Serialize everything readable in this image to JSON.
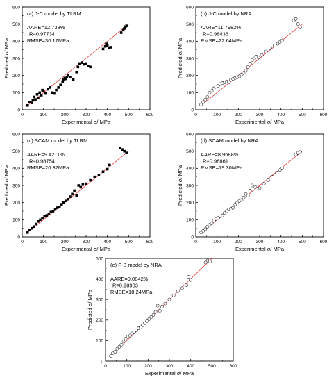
{
  "chart_data": [
    {
      "type": "scatter",
      "title": "(a) J-C model by TLRM",
      "stats": [
        "AARE=12.738%",
        "R=0.97734",
        "RMSE=30.17MPa"
      ],
      "xlabel": "Experimental σ/ MPa",
      "ylabel": "Predicted σ/ MPa",
      "xlim": [
        0,
        600
      ],
      "ylim": [
        0,
        600
      ],
      "xticks": [
        "0",
        "100",
        "200",
        "300",
        "400",
        "500",
        "600"
      ],
      "yticks": [
        "0",
        "100",
        "200",
        "300",
        "400",
        "500",
        "600"
      ],
      "marker": "filled-square",
      "series": [
        {
          "x": [
            25,
            35,
            45,
            50,
            55,
            62,
            70,
            75,
            82,
            90,
            95,
            100,
            110,
            120,
            130,
            140,
            150,
            160,
            170,
            180,
            190,
            195,
            200,
            205,
            210,
            215,
            225,
            240,
            255,
            262,
            270,
            280,
            290,
            300,
            310,
            320,
            380,
            390,
            395,
            400,
            408,
            415,
            465,
            475,
            480,
            485,
            490
          ],
          "y": [
            25,
            45,
            40,
            55,
            75,
            60,
            90,
            70,
            100,
            85,
            115,
            110,
            95,
            120,
            130,
            100,
            95,
            115,
            130,
            145,
            165,
            175,
            185,
            180,
            190,
            200,
            190,
            175,
            220,
            250,
            270,
            275,
            265,
            270,
            255,
            250,
            355,
            370,
            385,
            375,
            360,
            365,
            450,
            465,
            475,
            485,
            490
          ]
        }
      ]
    },
    {
      "type": "scatter",
      "title": "(b) J-C model by NRA",
      "stats": [
        "AARE=11.7982%",
        "R=0.98436",
        "RMSE=22.64MPa"
      ],
      "xlabel": "Experimental σ/ MPa",
      "ylabel": "Predicted σ/ MPa",
      "xlim": [
        0,
        600
      ],
      "ylim": [
        0,
        600
      ],
      "xticks": [
        "0",
        "100",
        "200",
        "300",
        "400",
        "500",
        "600"
      ],
      "yticks": [
        "0",
        "100",
        "200",
        "300",
        "400",
        "500",
        "600"
      ],
      "marker": "open-circle",
      "series": [
        {
          "x": [
            25,
            35,
            45,
            55,
            65,
            75,
            85,
            95,
            105,
            115,
            125,
            135,
            145,
            155,
            165,
            175,
            185,
            195,
            205,
            215,
            225,
            235,
            245,
            255,
            265,
            275,
            285,
            295,
            310,
            330,
            350,
            370,
            385,
            395,
            405,
            460,
            470,
            480,
            490
          ],
          "y": [
            30,
            45,
            60,
            75,
            100,
            110,
            125,
            135,
            140,
            150,
            155,
            160,
            165,
            160,
            175,
            180,
            185,
            190,
            195,
            205,
            215,
            230,
            250,
            270,
            290,
            300,
            310,
            305,
            320,
            340,
            360,
            375,
            385,
            395,
            405,
            520,
            530,
            500,
            480
          ]
        }
      ]
    },
    {
      "type": "scatter",
      "title": "(c) SCAM model by TLRM",
      "stats": [
        "AARE=9.4211%",
        "R=0.98754",
        "RMSE=20.32MPa"
      ],
      "xlabel": "Experimental σ/ MPa",
      "ylabel": "Predicted σ/ MPa",
      "xlim": [
        0,
        600
      ],
      "ylim": [
        0,
        600
      ],
      "xticks": [
        "0",
        "100",
        "200",
        "300",
        "400",
        "500",
        "600"
      ],
      "yticks": [
        "0",
        "100",
        "200",
        "300",
        "400",
        "500",
        "600"
      ],
      "marker": "filled-square",
      "series": [
        {
          "x": [
            25,
            35,
            45,
            55,
            65,
            75,
            85,
            95,
            105,
            115,
            125,
            135,
            145,
            155,
            165,
            175,
            185,
            195,
            205,
            215,
            225,
            235,
            245,
            255,
            265,
            275,
            285,
            300,
            320,
            340,
            360,
            380,
            400,
            410,
            460,
            470,
            480,
            490
          ],
          "y": [
            25,
            40,
            50,
            60,
            75,
            90,
            100,
            110,
            120,
            125,
            135,
            145,
            150,
            160,
            170,
            175,
            190,
            200,
            210,
            220,
            235,
            250,
            270,
            240,
            300,
            290,
            305,
            310,
            330,
            350,
            360,
            380,
            395,
            420,
            520,
            510,
            500,
            490
          ]
        }
      ]
    },
    {
      "type": "scatter",
      "title": "(d) SCAM model by NRA",
      "stats": [
        "AARE=8.9588%",
        "R=0.98861",
        "RMSE=19.30MPa"
      ],
      "xlabel": "Experimental σ/ MPa",
      "ylabel": "Predicted σ/ MPa",
      "xlim": [
        0,
        600
      ],
      "ylim": [
        0,
        600
      ],
      "xticks": [
        "0",
        "100",
        "200",
        "300",
        "400",
        "500",
        "600"
      ],
      "yticks": [
        "0",
        "100",
        "200",
        "300",
        "400",
        "500",
        "600"
      ],
      "marker": "open-circle",
      "series": [
        {
          "x": [
            25,
            35,
            45,
            55,
            65,
            75,
            85,
            95,
            105,
            115,
            125,
            135,
            145,
            155,
            165,
            175,
            185,
            195,
            205,
            215,
            225,
            235,
            245,
            255,
            265,
            280,
            300,
            320,
            340,
            360,
            380,
            395,
            405,
            470,
            480,
            490
          ],
          "y": [
            25,
            35,
            45,
            60,
            70,
            80,
            95,
            105,
            110,
            120,
            125,
            140,
            150,
            160,
            165,
            170,
            190,
            200,
            210,
            215,
            230,
            250,
            240,
            270,
            300,
            290,
            285,
            310,
            330,
            350,
            375,
            390,
            400,
            480,
            490,
            495
          ]
        }
      ]
    },
    {
      "type": "scatter",
      "title": "(e) F-B model by NRA",
      "stats": [
        "AARE=9.0842%",
        "R=0.98983",
        "RMSE=18.24MPa"
      ],
      "xlabel": "Experimental σ/ MPa",
      "ylabel": "Predicted σ/ MPa",
      "xlim": [
        0,
        600
      ],
      "ylim": [
        0,
        500
      ],
      "xticks": [
        "0",
        "100",
        "200",
        "300",
        "400",
        "500",
        "600"
      ],
      "yticks": [
        "0",
        "100",
        "200",
        "300",
        "400",
        "500"
      ],
      "marker": "open-circle",
      "series": [
        {
          "x": [
            25,
            35,
            45,
            55,
            65,
            75,
            85,
            95,
            105,
            115,
            125,
            135,
            145,
            155,
            165,
            175,
            185,
            195,
            205,
            215,
            225,
            235,
            245,
            255,
            265,
            280,
            300,
            320,
            340,
            360,
            380,
            390,
            400,
            470,
            480,
            490
          ],
          "y": [
            25,
            40,
            45,
            60,
            70,
            80,
            95,
            110,
            120,
            125,
            135,
            140,
            150,
            160,
            165,
            175,
            185,
            195,
            205,
            215,
            225,
            240,
            270,
            245,
            265,
            280,
            300,
            320,
            340,
            355,
            370,
            410,
            395,
            480,
            490,
            485
          ]
        }
      ]
    }
  ]
}
